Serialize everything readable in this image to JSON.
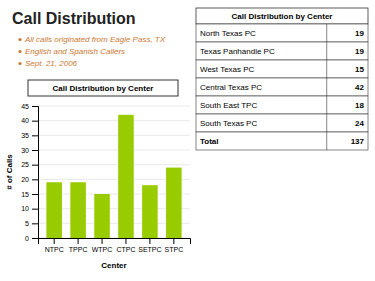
{
  "title": "Call Distribution",
  "bullet_points": [
    "All calls originated from Eagle Pass, TX",
    "English and Spanish Callers",
    "Sept. 21, 2006"
  ],
  "table": {
    "title": "Call Distribution by Center",
    "rows": [
      {
        "label": "North Texas PC",
        "value": 19
      },
      {
        "label": "Texas Panhandle PC",
        "value": 19
      },
      {
        "label": "West Texas PC",
        "value": 15
      },
      {
        "label": "Central Texas PC",
        "value": 42
      },
      {
        "label": "South East TPC",
        "value": 18
      },
      {
        "label": "South Texas PC",
        "value": 24
      },
      {
        "label": "Total",
        "value": 137
      }
    ]
  },
  "chart_data": {
    "type": "bar",
    "title": "Call Distribution by Center",
    "categories": [
      "NTPC",
      "TPPC",
      "WTPC",
      "CTPC",
      "SETPC",
      "STPC"
    ],
    "values": [
      19,
      19,
      15,
      42,
      18,
      24
    ],
    "color": "#99cc00",
    "xlabel": "Center",
    "ylabel": "# of Calls",
    "ylim": [
      0,
      45
    ],
    "yticks": [
      0,
      5,
      10,
      15,
      20,
      25,
      30,
      35,
      40,
      45
    ],
    "grid": true
  }
}
